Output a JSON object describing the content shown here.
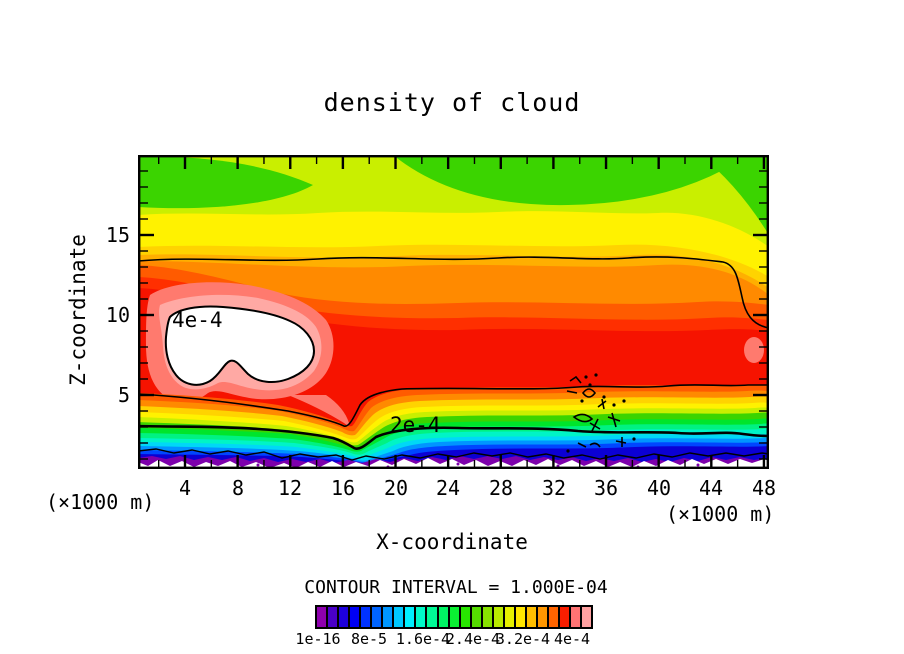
{
  "title": "density of cloud",
  "axes": {
    "y": {
      "label": "Z-coordinate",
      "unit_note": "(×1000 m)",
      "tick_labels": [
        "15",
        "10",
        "5"
      ]
    },
    "x": {
      "label": "X-coordinate",
      "unit_note_left": "(×1000 m)",
      "unit_note_right": "(×1000 m)",
      "tick_labels": [
        "4",
        "8",
        "12",
        "16",
        "20",
        "24",
        "28",
        "32",
        "36",
        "40",
        "44",
        "48"
      ]
    }
  },
  "contour_labels": {
    "upper_left": "4e-4",
    "lower_mid": "2e-4"
  },
  "footer": {
    "contour_interval_text": "CONTOUR INTERVAL = 1.000E-04"
  },
  "colorbar": {
    "labels": [
      "1e-16",
      "8e-5",
      "1.6e-4",
      "2.4e-4",
      "3.2e-4",
      "4e-4"
    ],
    "colors": [
      "#8E00AE",
      "#4A00C8",
      "#1E00DC",
      "#0000F5",
      "#0032FF",
      "#0064FF",
      "#0096FF",
      "#00C8FF",
      "#00F0FF",
      "#00FAC8",
      "#00FA96",
      "#00F564",
      "#0AF032",
      "#28E600",
      "#55DC00",
      "#87E100",
      "#B9EB00",
      "#E6F000",
      "#FFE600",
      "#FFBE00",
      "#FF9600",
      "#FF6400",
      "#FA1E00",
      "#FF7373",
      "#FFA0A0"
    ]
  },
  "chart_data": {
    "type": "heatmap",
    "subtype": "filled_contour",
    "title": "density of cloud",
    "xlabel": "X-coordinate (×1000 m)",
    "ylabel": "Z-coordinate (×1000 m)",
    "xlim": [
      0.5,
      48.3
    ],
    "ylim": [
      0.4,
      20
    ],
    "x_major_ticks": [
      4,
      8,
      12,
      16,
      20,
      24,
      28,
      32,
      36,
      40,
      44,
      48
    ],
    "x_minor_step": 2,
    "y_major_ticks": [
      5,
      10,
      15
    ],
    "y_minor_step": 1,
    "grid": false,
    "legend_position": "bottom colorbar",
    "contour_interval": 0.0001,
    "line_contour_levels": [
      0.0001,
      0.0002,
      0.0003,
      0.0004
    ],
    "labeled_contours": [
      {
        "label": "4e-4",
        "x": 3.0,
        "z": 9.6
      },
      {
        "label": "2e-4",
        "x": 19.5,
        "z": 2.9
      }
    ],
    "colorbar_tick_labels": [
      "1e-16",
      "8e-5",
      "1.6e-4",
      "2.4e-4",
      "3.2e-4",
      "4e-4"
    ],
    "colorbar_cells": 25,
    "field_summary": {
      "description": "Cloud density is layered horizontally: ~1.5-2e-4 (green) near the top of the domain (z≈17-20), increasing downward through yellow (~2.4e-4) and orange (~2.8e-4) to a broad red maximum band (~3.2-4e-4) between z≈6 and z≈12, then decreasing rapidly below z≈5 through 2e-4 (z≈3) and 1e-4 (z≈1.5) to near zero (purple/white) at the surface.",
      "vertical_profile": [
        {
          "z": 20,
          "value": 0.00016
        },
        {
          "z": 17,
          "value": 0.0002
        },
        {
          "z": 15,
          "value": 0.00024
        },
        {
          "z": 13.2,
          "value": 0.0003
        },
        {
          "z": 9,
          "value": 0.00038
        },
        {
          "z": 4.6,
          "value": 0.0003
        },
        {
          "z": 2.9,
          "value": 0.0002
        },
        {
          "z": 1.6,
          "value": 0.0001
        },
        {
          "z": 0.7,
          "value": 0
        }
      ],
      "max_region": {
        "x_range": [
          1.5,
          13.5
        ],
        "z_range": [
          5,
          10
        ],
        "value": "> 4e-4 (white core outlined in black, labeled 4e-4)"
      },
      "noisy_contour_region": {
        "x_range": [
          33,
          38
        ],
        "z_range": [
          1,
          6
        ],
        "note": "cluster of small closed contours with overlapping illegible labels"
      }
    }
  }
}
